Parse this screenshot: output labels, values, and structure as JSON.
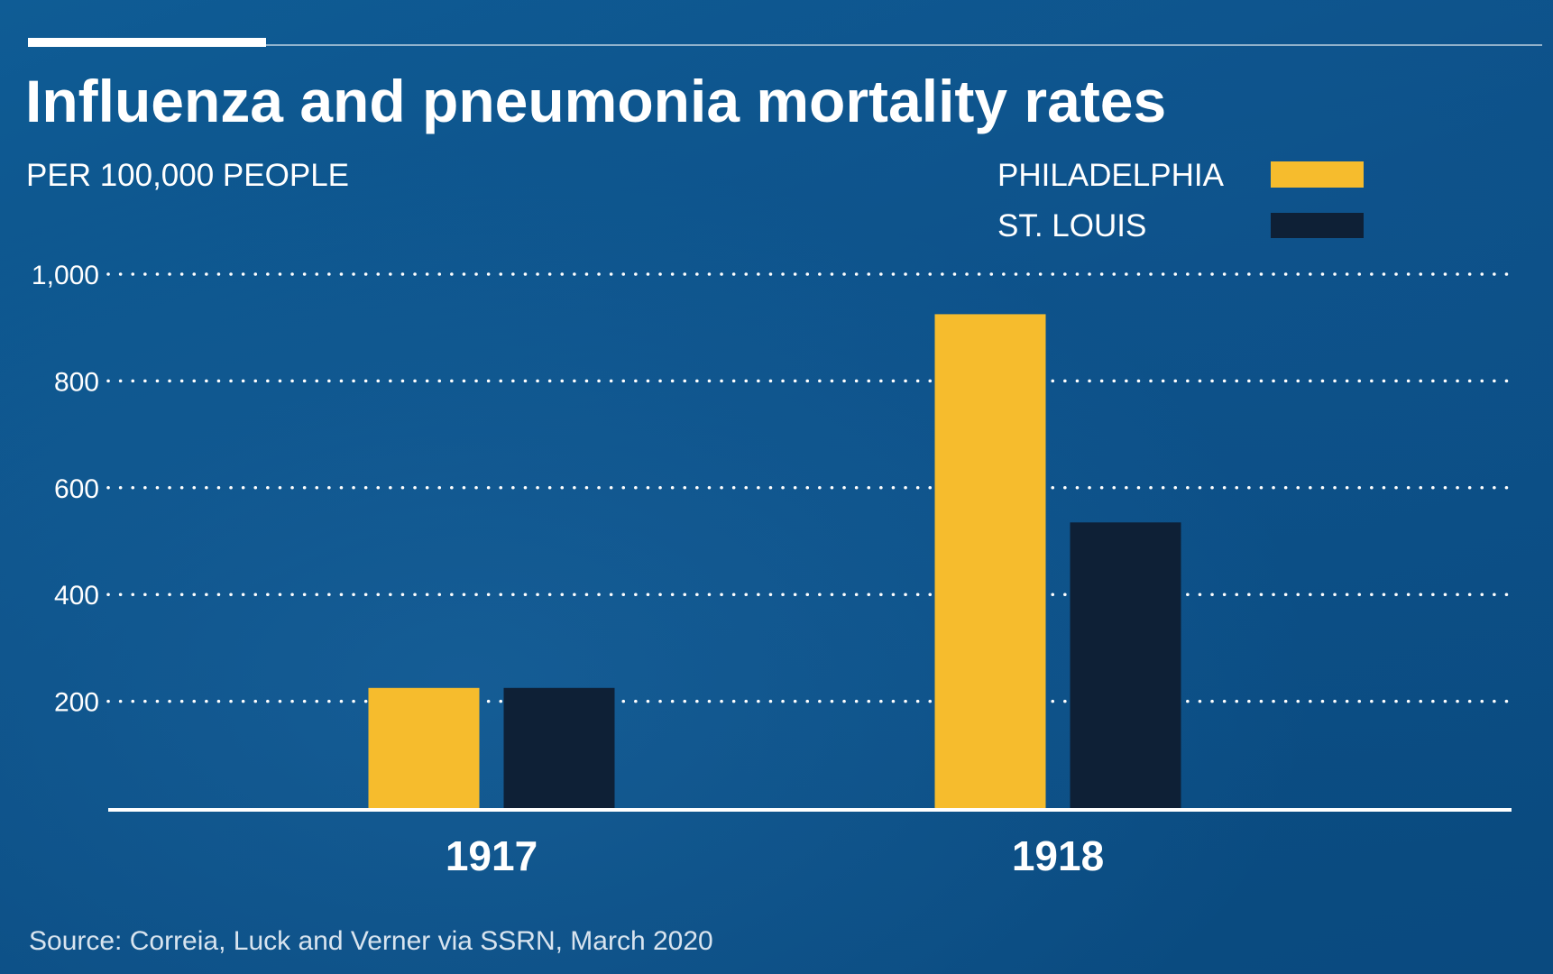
{
  "header": {
    "title": "Influenza and pneumonia mortality rates",
    "subtitle": "PER 100,000 PEOPLE"
  },
  "legend": {
    "items": [
      {
        "label": "PHILADELPHIA",
        "color": "#f6bc2d"
      },
      {
        "label": "ST. LOUIS",
        "color": "#0e2036"
      }
    ]
  },
  "footer": {
    "source": "Source: Correia, Luck and Verner via SSRN, March 2020"
  },
  "colors": {
    "background": "#0b4f86",
    "philadelphia": "#f6bc2d",
    "st_louis": "#0e2036",
    "gridline": "#ffffff",
    "axis": "#ffffff"
  },
  "chart_data": {
    "type": "bar",
    "title": "Influenza and pneumonia mortality rates",
    "subtitle": "PER 100,000 PEOPLE",
    "categories": [
      "1917",
      "1918"
    ],
    "series": [
      {
        "name": "PHILADELPHIA",
        "values": [
          225,
          925
        ],
        "color": "#f6bc2d"
      },
      {
        "name": "ST. LOUIS",
        "values": [
          225,
          535
        ],
        "color": "#0e2036"
      }
    ],
    "yticks": [
      200,
      400,
      600,
      800,
      1000
    ],
    "ytick_labels": [
      "200",
      "400",
      "600",
      "800",
      "1,000"
    ],
    "ylim": [
      0,
      1000
    ],
    "grid": true,
    "grid_style": "dotted",
    "legend_position": "top-right",
    "source": "Source: Correia, Luck and Verner via SSRN, March 2020"
  }
}
